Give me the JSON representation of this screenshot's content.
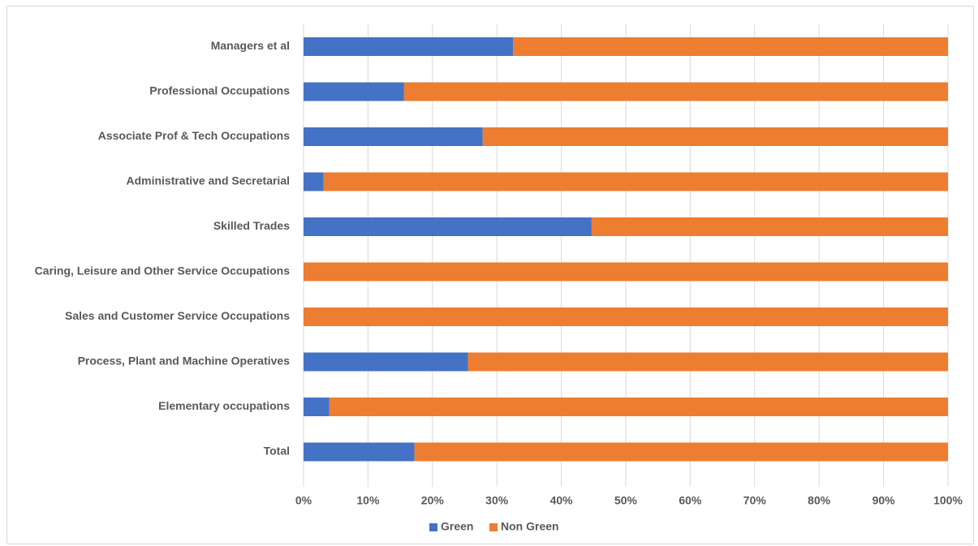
{
  "chart_data": {
    "type": "bar",
    "orientation": "horizontal",
    "stacked": "percent",
    "categories": [
      "Managers et al",
      "Professional Occupations",
      "Associate Prof & Tech Occupations",
      "Administrative and Secretarial",
      "Skilled Trades",
      "Caring, Leisure and Other Service Occupations",
      "Sales and Customer Service Occupations",
      "Process, Plant and Machine Operatives",
      "Elementary occupations",
      "Total"
    ],
    "series": [
      {
        "name": "Green",
        "color": "#4472c4",
        "values": [
          32.5,
          15.6,
          27.8,
          3.1,
          44.7,
          0,
          0,
          25.5,
          4.0,
          17.2
        ]
      },
      {
        "name": "Non Green",
        "color": "#ed7d31",
        "values": [
          67.5,
          84.4,
          72.2,
          96.9,
          55.3,
          100,
          100,
          74.5,
          96.0,
          82.8
        ]
      }
    ],
    "x_ticks": [
      "0%",
      "10%",
      "20%",
      "30%",
      "40%",
      "50%",
      "60%",
      "70%",
      "80%",
      "90%",
      "100%"
    ],
    "xlim": [
      0,
      100
    ],
    "title": "",
    "xlabel": "",
    "ylabel": "",
    "grid": "vertical",
    "legend": "bottom"
  }
}
